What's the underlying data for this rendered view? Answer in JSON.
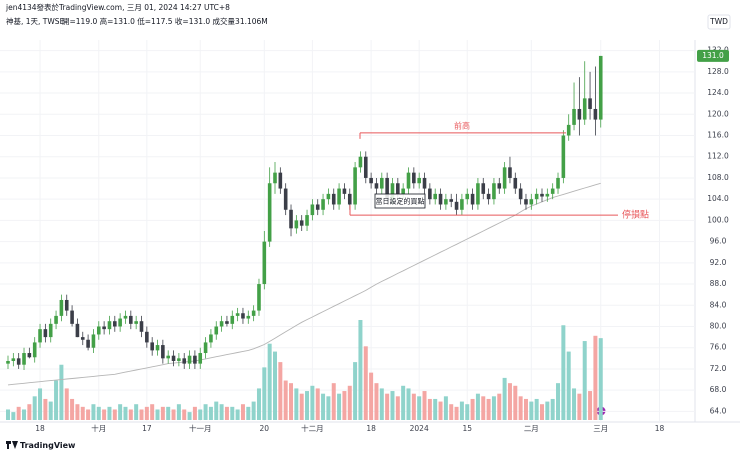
{
  "chart_data": {
    "type": "candlestick",
    "attribution": "jen4134發表於TradingView.com, 三月 01, 2024 14:27 UTC+8",
    "title": "神基, 1天, TWSE",
    "legend_values": "開=119.0 高=131.0 低=117.5 收=131.0 成交量31.106M",
    "currency": "TWD",
    "logo": "TradingView",
    "last_price": {
      "value": 131,
      "label": "131.0"
    },
    "up_color": "#43a047",
    "down_color": "#3b3e48",
    "volume_up_color": "#8fd3cb",
    "volume_down_color": "#f4a6a3",
    "categories": [
      null,
      null,
      null,
      null,
      null,
      null,
      "18",
      null,
      null,
      null,
      null,
      null,
      null,
      null,
      null,
      null,
      null,
      "十月",
      null,
      null,
      null,
      null,
      null,
      null,
      null,
      null,
      "17",
      null,
      null,
      null,
      null,
      null,
      null,
      null,
      null,
      null,
      "十一月",
      null,
      null,
      null,
      null,
      null,
      null,
      null,
      null,
      null,
      null,
      null,
      "20",
      null,
      null,
      null,
      null,
      null,
      null,
      null,
      null,
      "十二月",
      null,
      null,
      null,
      null,
      null,
      null,
      null,
      null,
      null,
      null,
      "18",
      null,
      null,
      null,
      null,
      null,
      null,
      null,
      null,
      "2024",
      null,
      null,
      null,
      null,
      null,
      null,
      null,
      null,
      "15",
      null,
      null,
      null,
      null,
      null,
      null,
      null,
      null,
      null,
      null,
      null,
      "二月",
      null,
      null,
      null,
      null,
      null,
      null,
      null,
      null,
      null,
      null,
      null,
      null,
      "三月",
      null,
      null,
      null,
      null,
      null,
      null,
      null,
      null,
      null,
      null,
      "18",
      null,
      null,
      null,
      null,
      null,
      null
    ],
    "ohlc": {
      "open": [
        73,
        73.5,
        74,
        72.8,
        75,
        74.2,
        77,
        79.5,
        78,
        80.5,
        82,
        85,
        83,
        80.5,
        78,
        77.5,
        76,
        78.5,
        80,
        79.5,
        81,
        80,
        81.5,
        82,
        80.5,
        81,
        79,
        77,
        75.5,
        76.5,
        74,
        74.5,
        73.5,
        74,
        73,
        74.5,
        73,
        75,
        77,
        78.5,
        80,
        81,
        80.5,
        82,
        82.5,
        81.5,
        82,
        83,
        88,
        96,
        107,
        109,
        106,
        102,
        98.5,
        100,
        99,
        101,
        103,
        102,
        104,
        105,
        103,
        106,
        105,
        103,
        110,
        112,
        108,
        107,
        106,
        108,
        104,
        107,
        105,
        106,
        109,
        107,
        108,
        106,
        104,
        105,
        103,
        104,
        103.5,
        102,
        104,
        105,
        103,
        107,
        105,
        104,
        107,
        106,
        110,
        108,
        106,
        104,
        103,
        104,
        105,
        104.5,
        105,
        106,
        108,
        116,
        118,
        121,
        119,
        123,
        121,
        119,
        null,
        null,
        null,
        null,
        null,
        null,
        null,
        null,
        null,
        null,
        null,
        null,
        null,
        null,
        null,
        null,
        null
      ],
      "high": [
        74.5,
        75,
        75,
        76,
        76,
        78,
        80.5,
        80.5,
        81.5,
        83,
        86,
        86,
        84,
        81.5,
        79,
        78.5,
        79.5,
        81,
        81,
        82,
        82,
        82.5,
        83,
        83,
        82,
        82,
        80,
        78,
        77.5,
        77.5,
        75.5,
        75.5,
        75,
        75,
        75.5,
        75.5,
        76,
        78,
        79.5,
        81,
        82,
        82,
        83,
        83.5,
        83.5,
        83,
        84,
        89,
        98,
        110,
        111,
        110,
        107,
        103,
        101,
        101,
        102,
        104,
        104,
        105,
        106,
        106,
        107,
        107,
        106,
        111,
        113,
        113,
        109,
        108,
        109,
        109,
        108,
        108,
        107,
        110,
        110,
        109,
        109,
        107,
        106,
        106,
        105,
        105,
        105,
        105,
        106,
        106,
        108,
        108,
        106,
        108,
        108,
        111,
        112,
        109,
        107,
        105,
        105,
        106,
        106,
        106,
        107,
        109,
        117,
        120,
        126,
        127,
        130,
        128,
        129,
        131,
        null,
        null,
        null,
        null,
        null,
        null,
        null,
        null,
        null,
        null,
        null,
        null,
        null,
        null,
        null,
        null,
        null
      ],
      "low": [
        72,
        72.5,
        72,
        71.8,
        74,
        73.2,
        76,
        77,
        77,
        79.5,
        81,
        82,
        80,
        78,
        76.5,
        75.5,
        75,
        77.5,
        78.5,
        78.5,
        79,
        79,
        80.5,
        79.5,
        79.5,
        78,
        76,
        74.5,
        74.5,
        73,
        73,
        72.5,
        72.5,
        72,
        72,
        72,
        72,
        74,
        76,
        77.5,
        79,
        80,
        79.5,
        81,
        80.5,
        80.5,
        81,
        82,
        87,
        95,
        105,
        105,
        101,
        97,
        97.5,
        98,
        98,
        100,
        101,
        101,
        103,
        102,
        102,
        104,
        102,
        102,
        109,
        107,
        106,
        105,
        105,
        103,
        103,
        104,
        104,
        105,
        106,
        106,
        105,
        103,
        103,
        102,
        102,
        102.5,
        101,
        101,
        103,
        102,
        102,
        104,
        103,
        103,
        105,
        105,
        107,
        105,
        103,
        102,
        102,
        103,
        103.5,
        103.5,
        104,
        105,
        107,
        115,
        117,
        116,
        118,
        119,
        116,
        117.5,
        null,
        null,
        null,
        null,
        null,
        null,
        null,
        null,
        null,
        null,
        null,
        null,
        null,
        null,
        null,
        null,
        null
      ],
      "close": [
        73.5,
        74,
        72.8,
        75,
        74.2,
        77,
        79.5,
        78,
        80.5,
        82,
        85,
        83,
        80.5,
        78,
        77.5,
        76,
        78.5,
        80,
        79.5,
        81,
        80,
        81.5,
        82,
        80.5,
        81,
        79,
        77,
        75.5,
        76.5,
        74,
        74.5,
        73.5,
        74,
        73,
        74.5,
        73,
        75,
        77,
        78.5,
        80,
        81,
        80.5,
        82,
        82.5,
        81.5,
        82,
        83,
        88,
        96,
        107,
        109,
        106,
        102,
        98.5,
        100,
        99,
        101,
        103,
        102,
        104,
        105,
        103,
        106,
        105,
        103,
        110,
        112,
        108,
        107,
        106,
        108,
        104,
        107,
        105,
        106,
        109,
        107,
        108,
        106,
        104,
        105,
        103,
        104,
        103.5,
        102,
        104,
        105,
        103,
        107,
        105,
        104,
        107,
        106,
        110,
        108,
        106,
        104,
        103,
        104,
        105,
        104.5,
        105,
        106,
        108,
        116,
        118,
        121,
        119,
        123,
        121,
        119,
        131,
        null,
        null,
        null,
        null,
        null,
        null,
        null,
        null,
        null,
        null,
        null,
        null,
        null,
        null,
        null,
        null,
        null
      ]
    },
    "volume": [
      4,
      3,
      5,
      4,
      6,
      9,
      12,
      8,
      7,
      15,
      21,
      12,
      8,
      6,
      5,
      4,
      6,
      5,
      4,
      5,
      4,
      6,
      5,
      4,
      6,
      4,
      5,
      6,
      4,
      5,
      5,
      4,
      6,
      4,
      3,
      5,
      4,
      6,
      5,
      7,
      6,
      5,
      5,
      4,
      6,
      5,
      7,
      12,
      20,
      29,
      26,
      22,
      15,
      14,
      12,
      10,
      11,
      13,
      12,
      10,
      9,
      14,
      10,
      11,
      13,
      22,
      38,
      28,
      18,
      14,
      12,
      10,
      11,
      9,
      13,
      12,
      10,
      9,
      11,
      8,
      8,
      7,
      9,
      6,
      5,
      7,
      6,
      8,
      10,
      9,
      8,
      9,
      10,
      16,
      14,
      13,
      9,
      8,
      7,
      8,
      6,
      7,
      8,
      14,
      36,
      26,
      12,
      10,
      30,
      11,
      32,
      31.106,
      null,
      null,
      null,
      null,
      null,
      null,
      null,
      null,
      null,
      null,
      null,
      null,
      null,
      null,
      null,
      null,
      null
    ],
    "ma": {
      "color": "#b5b5b5",
      "values": [
        69,
        69.1,
        69.2,
        69.3,
        69.4,
        69.5,
        69.6,
        69.7,
        69.8,
        69.9,
        70,
        70.1,
        70.2,
        70.3,
        70.4,
        70.5,
        70.6,
        70.7,
        70.8,
        70.9,
        71,
        71.2,
        71.4,
        71.6,
        71.8,
        72,
        72.2,
        72.4,
        72.6,
        72.8,
        73,
        73.1,
        73.2,
        73.3,
        73.4,
        73.5,
        73.7,
        73.9,
        74.1,
        74.3,
        74.5,
        74.7,
        74.9,
        75.1,
        75.3,
        75.5,
        75.8,
        76.2,
        76.6,
        77.2,
        77.8,
        78.4,
        79,
        79.6,
        80.2,
        80.8,
        81.3,
        81.8,
        82.3,
        82.8,
        83.3,
        83.8,
        84.3,
        84.8,
        85.3,
        85.8,
        86.3,
        86.8,
        87.4,
        88,
        88.5,
        89,
        89.5,
        90,
        90.5,
        91,
        91.5,
        92,
        92.5,
        93,
        93.5,
        94,
        94.5,
        95,
        95.5,
        96,
        96.5,
        97,
        97.5,
        98,
        98.5,
        99,
        99.5,
        100,
        100.5,
        101,
        101.6,
        102.2,
        102.7,
        103.1,
        103.5,
        103.9,
        104.3,
        104.6,
        104.9,
        105.2,
        105.5,
        105.8,
        106.1,
        106.4,
        106.7,
        107,
        null,
        null,
        null,
        null,
        null,
        null,
        null,
        null,
        null,
        null,
        null,
        null,
        null,
        null,
        null,
        null,
        null
      ]
    },
    "annotations": [
      {
        "text": "前高",
        "value": 116.5,
        "color": "#e8575a"
      },
      {
        "text": "停損點",
        "value": 101,
        "color": "#e8575a"
      },
      {
        "text": "當日設定的買點"
      }
    ],
    "ylim": [
      62,
      134
    ],
    "yticks": [
      {
        "value": 64,
        "label": "64.0"
      },
      {
        "value": 68,
        "label": "68.0"
      },
      {
        "value": 72,
        "label": "72.0"
      },
      {
        "value": 76,
        "label": "76.0"
      },
      {
        "value": 80,
        "label": "80.0"
      },
      {
        "value": 84,
        "label": "84.0"
      },
      {
        "value": 88,
        "label": "88.0"
      },
      {
        "value": 92,
        "label": "92.0"
      },
      {
        "value": 96,
        "label": "96.0"
      },
      {
        "value": 100,
        "label": "100.0"
      },
      {
        "value": 104,
        "label": "104.0"
      },
      {
        "value": 108,
        "label": "108.0"
      },
      {
        "value": 112,
        "label": "112.0"
      },
      {
        "value": 116,
        "label": "116.0"
      },
      {
        "value": 120,
        "label": "120.0"
      },
      {
        "value": 124,
        "label": "124.0"
      },
      {
        "value": 128,
        "label": "128.0"
      },
      {
        "value": 132,
        "label": "132.0"
      }
    ],
    "grid": true
  }
}
